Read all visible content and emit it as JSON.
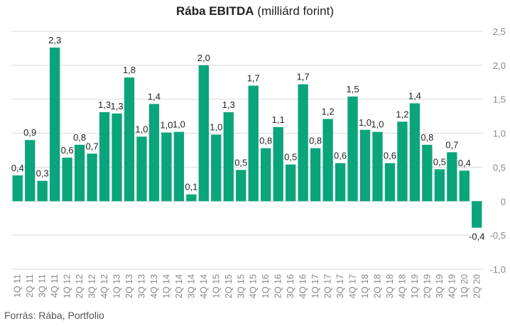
{
  "title": {
    "bold": "Rába EBITDA",
    "rest": " (milliárd forint)"
  },
  "source": "Forrás: Rába, Portfolio",
  "colors": {
    "bar": "#0aa57a",
    "grid": "#d9d9d9",
    "text": "#222222",
    "axis_text": "#888888"
  },
  "chart_data": {
    "type": "bar",
    "title": "Rába EBITDA (milliárd forint)",
    "xlabel": "",
    "ylabel": "",
    "ylim": [
      -1.0,
      2.5
    ],
    "y_ticks": [
      2.5,
      2.0,
      1.5,
      1.0,
      0.5,
      0.0,
      -0.5,
      -1.0
    ],
    "y_tick_labels": [
      "2,5",
      "2,0",
      "1,5",
      "1,0",
      "0,5",
      "0",
      "-0,5",
      "-1,0"
    ],
    "y_axis_position": "right",
    "grid": true,
    "legend": "none",
    "categories": [
      "1Q 11",
      "2Q 11",
      "3Q 11",
      "4Q 11",
      "1Q 12",
      "2Q 12",
      "3Q 12",
      "4Q 12",
      "1Q 13",
      "2Q 13",
      "3Q 13",
      "4Q 13",
      "1Q 14",
      "2Q 14",
      "3Q 14",
      "4Q 14",
      "1Q 15",
      "2Q 15",
      "3Q 15",
      "4Q 15",
      "1Q 16",
      "2Q 16",
      "3Q 16",
      "4Q 16",
      "1Q 17",
      "2Q 17",
      "3Q 17",
      "4Q 17",
      "1Q 18",
      "2Q 18",
      "3Q 18",
      "4Q 18",
      "1Q 19",
      "2Q 19",
      "3Q 19",
      "4Q 19",
      "1Q 20",
      "2Q 20"
    ],
    "values": [
      0.38,
      0.9,
      0.3,
      2.26,
      0.64,
      0.83,
      0.7,
      1.31,
      1.29,
      1.82,
      0.95,
      1.43,
      1.01,
      1.02,
      0.1,
      2.0,
      0.98,
      1.31,
      0.46,
      1.7,
      0.78,
      1.09,
      0.54,
      1.72,
      0.78,
      1.21,
      0.56,
      1.54,
      1.05,
      1.02,
      0.56,
      1.17,
      1.44,
      0.83,
      0.47,
      0.72,
      0.45,
      -0.39
    ],
    "value_labels": [
      "0,4",
      "0,9",
      "0,3",
      "2,3",
      "0,6",
      "0,8",
      "0,7",
      "1,3",
      "1,3",
      "1,8",
      "1,0",
      "1,4",
      "1,0",
      "1,0",
      "0,1",
      "2,0",
      "1,0",
      "1,3",
      "0,5",
      "1,7",
      "0,8",
      "1,1",
      "0,5",
      "1,7",
      "0,8",
      "1,2",
      "0,6",
      "1,5",
      "1,0",
      "1,0",
      "0,6",
      "1,2",
      "1,4",
      "0,8",
      "0,5",
      "0,7",
      "0,4",
      "-0,4"
    ]
  }
}
